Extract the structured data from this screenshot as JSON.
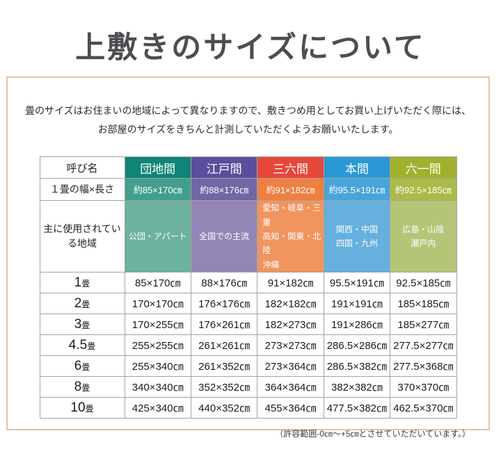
{
  "title": "上敷きのサイズについて",
  "intro": {
    "line1": "畳のサイズはお住まいの地域によって異なりますので、敷きつめ用としてお買い上げいただく際には、",
    "line2": "お部屋のサイズをきちんと計測していただくようお願いいたします。"
  },
  "table": {
    "corner_header": "呼び名",
    "size_row_label": "１畳の幅×長さ",
    "region_row_label": "主に使用されている地域",
    "columns": [
      {
        "name": "団地間",
        "one_mat_size": "約85×170㎝",
        "regions": [
          "公団・アパート"
        ],
        "region_align": "center",
        "header_color": "#0e8576",
        "size_color": "#41a08d",
        "region_color": "#6db29f"
      },
      {
        "name": "江戸間",
        "one_mat_size": "約88×176㎝",
        "regions": [
          "全国での主流"
        ],
        "region_align": "center",
        "header_color": "#5b4e9c",
        "size_color": "#7166a6",
        "region_color": "#9385b6"
      },
      {
        "name": "三六間",
        "one_mat_size": "約91×182㎝",
        "regions": [
          "愛知・岐阜・三重",
          "高知・関東・北陸",
          "沖縄"
        ],
        "region_align": "left",
        "header_color": "#e5483a",
        "size_color": "#ee7f41",
        "region_color": "#f0955e"
      },
      {
        "name": "本間",
        "one_mat_size": "約95.5×191㎝",
        "regions": [
          "関西・中国",
          "四国・九州"
        ],
        "region_align": "center",
        "header_color": "#2998d4",
        "size_color": "#48a5da",
        "region_color": "#66b0de"
      },
      {
        "name": "六一間",
        "one_mat_size": "約92.5×185㎝",
        "regions": [
          "広島・山陰",
          "瀬戸内"
        ],
        "region_align": "center",
        "header_color": "#a2b12c",
        "size_color": "#acba48",
        "region_color": "#b4c578"
      }
    ],
    "size_rows": [
      {
        "count": "1",
        "unit": "畳",
        "values": [
          "85×170㎝",
          "88×176㎝",
          "91×182㎝",
          "95.5×191㎝",
          "92.5×185㎝"
        ]
      },
      {
        "count": "2",
        "unit": "畳",
        "values": [
          "170×170㎝",
          "176×176㎝",
          "182×182㎝",
          "191×191㎝",
          "185×185㎝"
        ]
      },
      {
        "count": "3",
        "unit": "畳",
        "values": [
          "170×255㎝",
          "176×261㎝",
          "182×273㎝",
          "191×286㎝",
          "185×277㎝"
        ]
      },
      {
        "count": "4.5",
        "unit": "畳",
        "values": [
          "255×255㎝",
          "261×261㎝",
          "273×273㎝",
          "286.5×286㎝",
          "277.5×277㎝"
        ]
      },
      {
        "count": "6",
        "unit": "畳",
        "values": [
          "255×340㎝",
          "261×352㎝",
          "273×364㎝",
          "286.5×382㎝",
          "277.5×368㎝"
        ]
      },
      {
        "count": "8",
        "unit": "畳",
        "values": [
          "340×340㎝",
          "352×352㎝",
          "364×364㎝",
          "382×382㎝",
          "370×370㎝"
        ]
      },
      {
        "count": "10",
        "unit": "畳",
        "values": [
          "425×340㎝",
          "440×352㎝",
          "455×364㎝",
          "477.5×382㎝",
          "462.5×370㎝"
        ]
      }
    ]
  },
  "footnote": "（許容範囲-0㎝〜+5㎝とさせていただいています。）"
}
